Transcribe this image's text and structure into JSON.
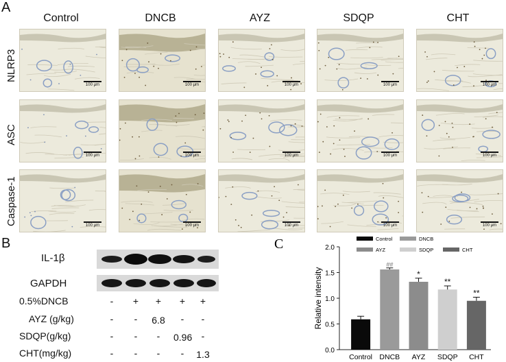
{
  "panel_a": {
    "letter": "A",
    "columns": [
      "Control",
      "DNCB",
      "AYZ",
      "SDQP",
      "CHT"
    ],
    "rows": [
      "NLRP3",
      "ASC",
      "Caspase-1"
    ],
    "scale_label": "100 μm"
  },
  "panel_b": {
    "letter": "B",
    "blots": [
      "IL-1β",
      "GAPDH"
    ],
    "conditions": [
      {
        "label": "0.5%DNCB",
        "marks": [
          "-",
          "+",
          "+",
          "+",
          "+"
        ]
      },
      {
        "label": "AYZ (g/kg)",
        "marks": [
          "-",
          "-",
          "6.8",
          "-",
          "-"
        ]
      },
      {
        "label": "SDQP(g/kg)",
        "marks": [
          "-",
          "-",
          "-",
          "0.96",
          "-"
        ]
      },
      {
        "label": "CHT(mg/kg)",
        "marks": [
          "-",
          "-",
          "-",
          "-",
          "1.3"
        ]
      }
    ]
  },
  "chart_data": {
    "type": "bar",
    "panel_letter": "C",
    "categories": [
      "Control",
      "DNCB",
      "AYZ",
      "SDQP",
      "CHT"
    ],
    "values": [
      0.59,
      1.56,
      1.32,
      1.17,
      0.95
    ],
    "errors": [
      0.06,
      0.03,
      0.07,
      0.07,
      0.07
    ],
    "significance": [
      "",
      "##",
      "*",
      "**",
      "**"
    ],
    "colors": [
      "#0a0a0a",
      "#9a9a9a",
      "#8c8c8c",
      "#cfcfcf",
      "#666666"
    ],
    "ylabel": "Relative intensity",
    "xlabel": "",
    "ylim": [
      0.0,
      2.0
    ],
    "yticks": [
      "0.0",
      "0.5",
      "1.0",
      "1.5",
      "2.0"
    ],
    "legend": [
      "Control",
      "DNCB",
      "AYZ",
      "SDQP",
      "CHT"
    ],
    "legend_position": "top"
  }
}
